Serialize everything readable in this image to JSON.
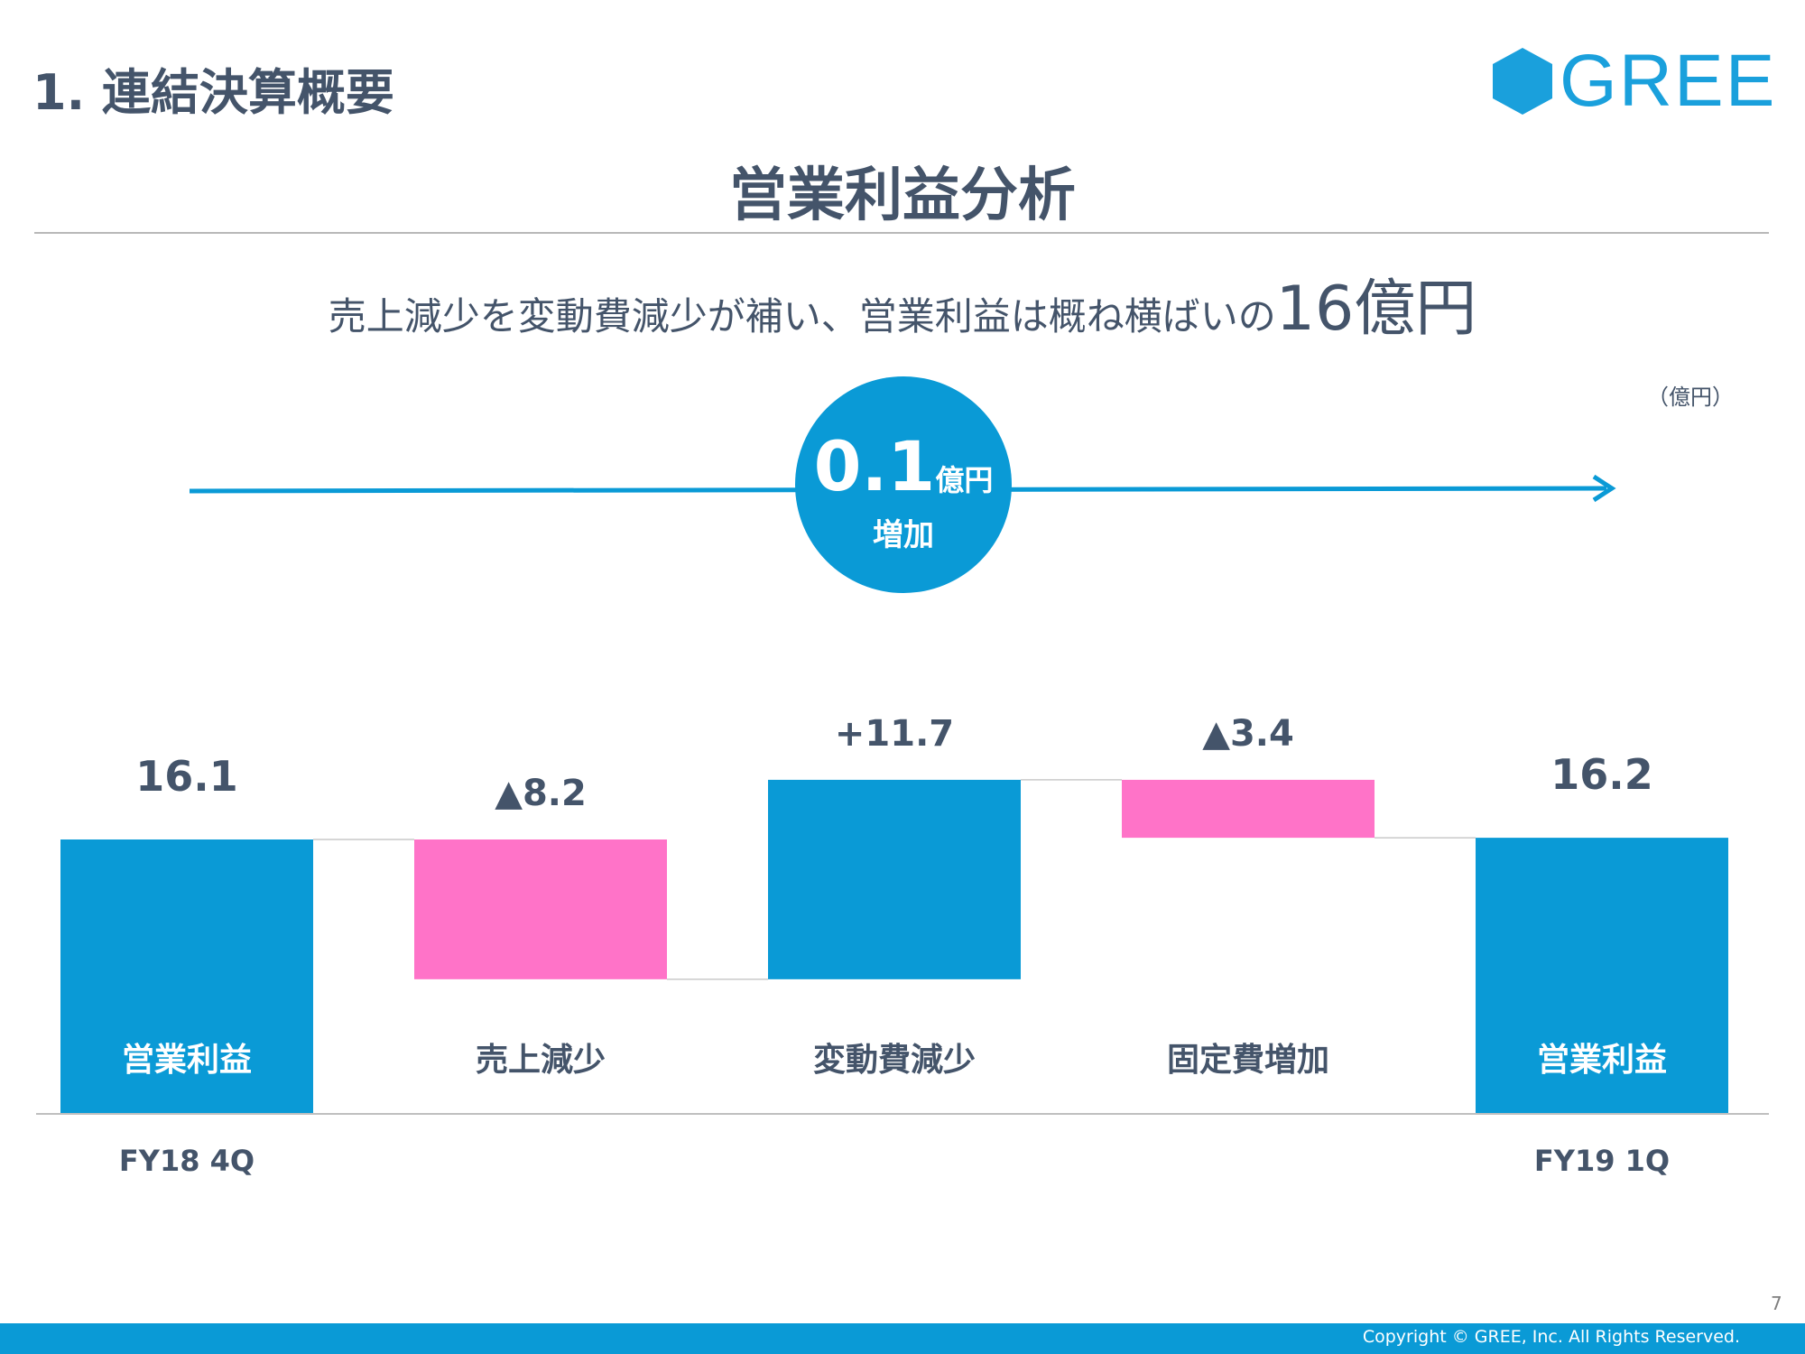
{
  "header": {
    "section_title": "1. 連結決算概要",
    "logo_text": "GREE",
    "brand_color": "#1aa0dc"
  },
  "slide": {
    "title": "営業利益分析",
    "subtitle_text": "売上減少を変動費減少が補い、営業利益は概ね横ばいの",
    "subtitle_value": "16億円",
    "unit": "（億円）"
  },
  "badge": {
    "value": "0.1",
    "unit": "億円",
    "direction": "増加",
    "color": "#0a9ad6"
  },
  "chart_data": {
    "type": "waterfall",
    "title": "営業利益分析",
    "unit": "億円",
    "colors": {
      "total": "#0a9ad6",
      "increase": "#0a9ad6",
      "decrease": "#ff73c8"
    },
    "steps": [
      {
        "label": "営業利益",
        "period": "FY18 4Q",
        "kind": "total",
        "value": 16.1,
        "display": "16.1"
      },
      {
        "label": "売上減少",
        "period": "",
        "kind": "decrease",
        "value": -8.2,
        "display": "▲8.2"
      },
      {
        "label": "変動費減少",
        "period": "",
        "kind": "increase",
        "value": 11.7,
        "display": "+11.7"
      },
      {
        "label": "固定費増加",
        "period": "",
        "kind": "decrease",
        "value": -3.4,
        "display": "▲3.4"
      },
      {
        "label": "営業利益",
        "period": "FY19 1Q",
        "kind": "total",
        "value": 16.2,
        "display": "16.2"
      }
    ],
    "ylim": [
      0,
      20
    ]
  },
  "footer": {
    "page_number": "7",
    "copyright": "Copyright © GREE, Inc. All Rights Reserved."
  }
}
